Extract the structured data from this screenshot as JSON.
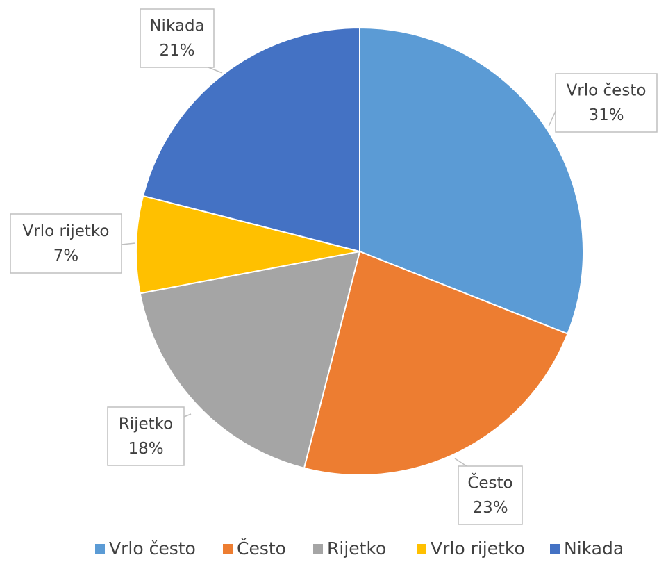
{
  "chart_data": {
    "type": "pie",
    "categories": [
      "Vrlo često",
      "Često",
      "Rijetko",
      "Vrlo rijetko",
      "Nikada"
    ],
    "values": [
      31,
      23,
      18,
      7,
      21
    ],
    "value_labels": [
      "31%",
      "23%",
      "18%",
      "7%",
      "21%"
    ],
    "colors": [
      "#5b9bd5",
      "#ed7d31",
      "#a5a5a5",
      "#ffc000",
      "#4472c4"
    ],
    "legend": "bottom"
  }
}
